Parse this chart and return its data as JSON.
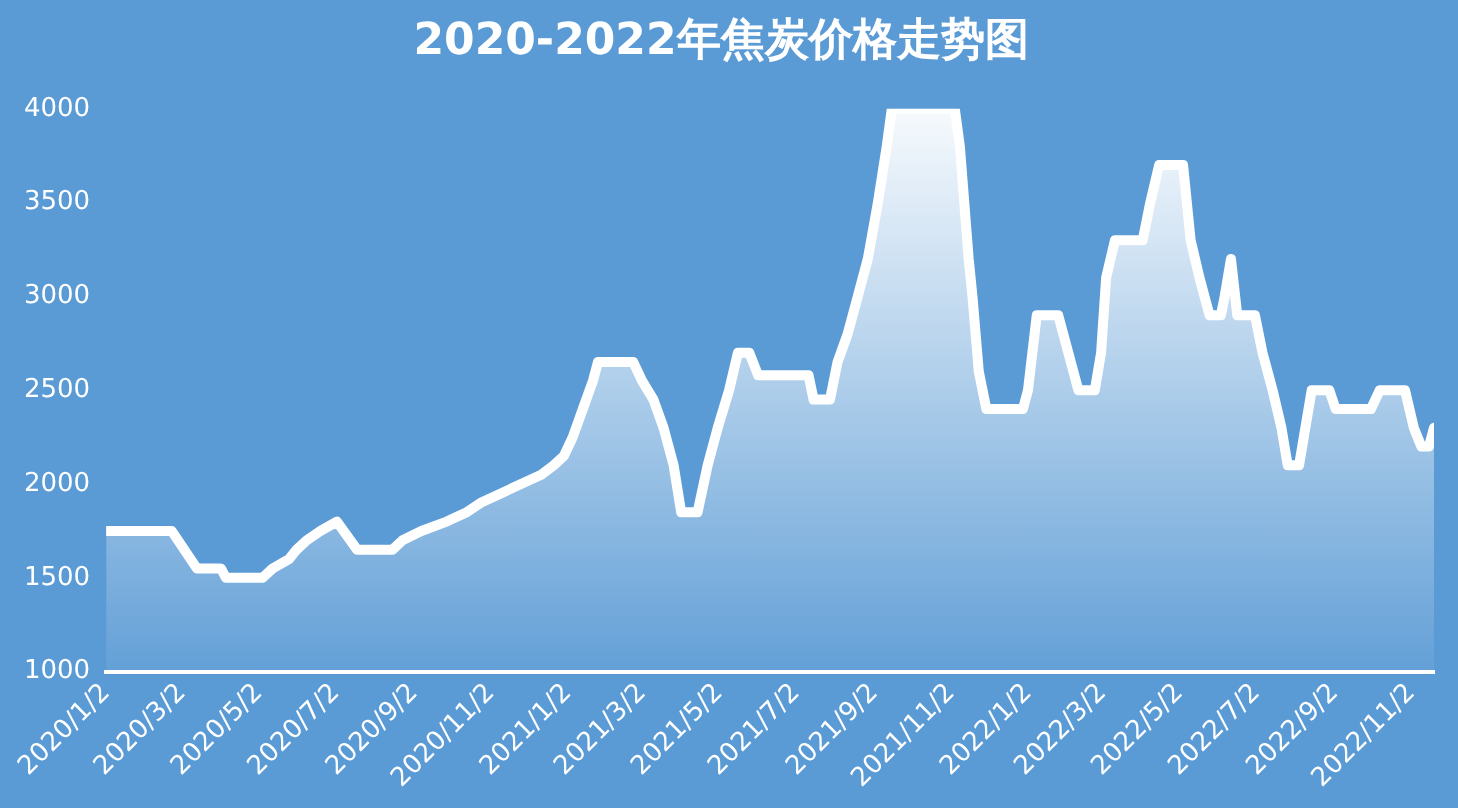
{
  "chart_data": {
    "type": "area",
    "title": "2020-2022年焦炭价格走势图",
    "x": [
      "2020-01-02",
      "2020-02-23",
      "2020-03-14",
      "2020-04-02",
      "2020-04-06",
      "2020-05-05",
      "2020-05-13",
      "2020-05-26",
      "2020-06-01",
      "2020-06-09",
      "2020-06-20",
      "2020-07-03",
      "2020-07-19",
      "2020-08-16",
      "2020-08-24",
      "2020-09-08",
      "2020-09-28",
      "2020-10-14",
      "2020-10-25",
      "2020-11-10",
      "2020-11-26",
      "2020-12-12",
      "2020-12-22",
      "2020-12-30",
      "2021-01-06",
      "2021-01-14",
      "2021-01-22",
      "2021-01-26",
      "2021-02-23",
      "2021-03-02",
      "2021-03-11",
      "2021-03-19",
      "2021-03-27",
      "2021-04-02",
      "2021-04-15",
      "2021-04-23",
      "2021-05-01",
      "2021-05-10",
      "2021-05-17",
      "2021-05-26",
      "2021-06-02",
      "2021-07-12",
      "2021-07-16",
      "2021-07-29",
      "2021-08-04",
      "2021-08-12",
      "2021-08-20",
      "2021-08-28",
      "2021-09-05",
      "2021-09-12",
      "2021-09-16",
      "2021-11-05",
      "2021-11-09",
      "2021-11-16",
      "2021-11-19",
      "2021-11-24",
      "2021-11-30",
      "2021-12-29",
      "2022-01-02",
      "2022-01-09",
      "2022-01-26",
      "2022-02-03",
      "2022-02-11",
      "2022-02-24",
      "2022-03-01",
      "2022-03-05",
      "2022-03-12",
      "2022-04-03",
      "2022-04-09",
      "2022-04-16",
      "2022-05-05",
      "2022-05-11",
      "2022-05-18",
      "2022-05-26",
      "2022-06-04",
      "2022-06-07",
      "2022-06-12",
      "2022-06-17",
      "2022-07-01",
      "2022-07-07",
      "2022-07-15",
      "2022-07-22",
      "2022-07-27",
      "2022-08-05",
      "2022-08-10",
      "2022-08-15",
      "2022-08-29",
      "2022-09-03",
      "2022-10-01",
      "2022-10-08",
      "2022-10-28",
      "2022-11-04",
      "2022-11-10",
      "2022-11-16",
      "2022-11-20"
    ],
    "series": [
      {
        "color": "#ffffff",
        "values": [
          1750,
          1750,
          1550,
          1550,
          1500,
          1500,
          1550,
          1600,
          1650,
          1700,
          1750,
          1800,
          1650,
          1650,
          1700,
          1750,
          1800,
          1850,
          1900,
          1950,
          2000,
          2050,
          2100,
          2150,
          2250,
          2400,
          2550,
          2650,
          2650,
          2550,
          2450,
          2300,
          2100,
          1850,
          1850,
          2100,
          2300,
          2500,
          2700,
          2700,
          2580,
          2580,
          2450,
          2450,
          2650,
          2800,
          3000,
          3200,
          3500,
          3800,
          4000,
          4000,
          3800,
          3200,
          3000,
          2600,
          2400,
          2400,
          2500,
          2900,
          2900,
          2700,
          2500,
          2500,
          2700,
          3100,
          3300,
          3300,
          3500,
          3700,
          3700,
          3300,
          3100,
          2900,
          2900,
          3000,
          3200,
          2900,
          2900,
          2700,
          2500,
          2300,
          2100,
          2100,
          2300,
          2500,
          2500,
          2400,
          2400,
          2500,
          2500,
          2300,
          2200,
          2200,
          2300
        ]
      }
    ],
    "xlim": [
      "2020-01-02",
      "2022-11-20"
    ],
    "xticks": [
      {
        "value": "2020-01-02",
        "label": "2020/1/2"
      },
      {
        "value": "2020-03-02",
        "label": "2020/3/2"
      },
      {
        "value": "2020-05-02",
        "label": "2020/5/2"
      },
      {
        "value": "2020-07-02",
        "label": "2020/7/2"
      },
      {
        "value": "2020-09-02",
        "label": "2020/9/2"
      },
      {
        "value": "2020-11-02",
        "label": "2020/11/2"
      },
      {
        "value": "2021-01-02",
        "label": "2021/1/2"
      },
      {
        "value": "2021-03-02",
        "label": "2021/3/2"
      },
      {
        "value": "2021-05-02",
        "label": "2021/5/2"
      },
      {
        "value": "2021-07-02",
        "label": "2021/7/2"
      },
      {
        "value": "2021-09-02",
        "label": "2021/9/2"
      },
      {
        "value": "2021-11-02",
        "label": "2021/11/2"
      },
      {
        "value": "2022-01-02",
        "label": "2022/1/2"
      },
      {
        "value": "2022-03-02",
        "label": "2022/3/2"
      },
      {
        "value": "2022-05-02",
        "label": "2022/5/2"
      },
      {
        "value": "2022-07-02",
        "label": "2022/7/2"
      },
      {
        "value": "2022-09-02",
        "label": "2022/9/2"
      },
      {
        "value": "2022-11-02",
        "label": "2022/11/2"
      }
    ],
    "ylim": [
      1000,
      4000
    ],
    "yticks": [
      1000,
      1500,
      2000,
      2500,
      3000,
      3500,
      4000
    ],
    "grid": false,
    "legend": false,
    "marker": "none",
    "line_style": "solid"
  }
}
